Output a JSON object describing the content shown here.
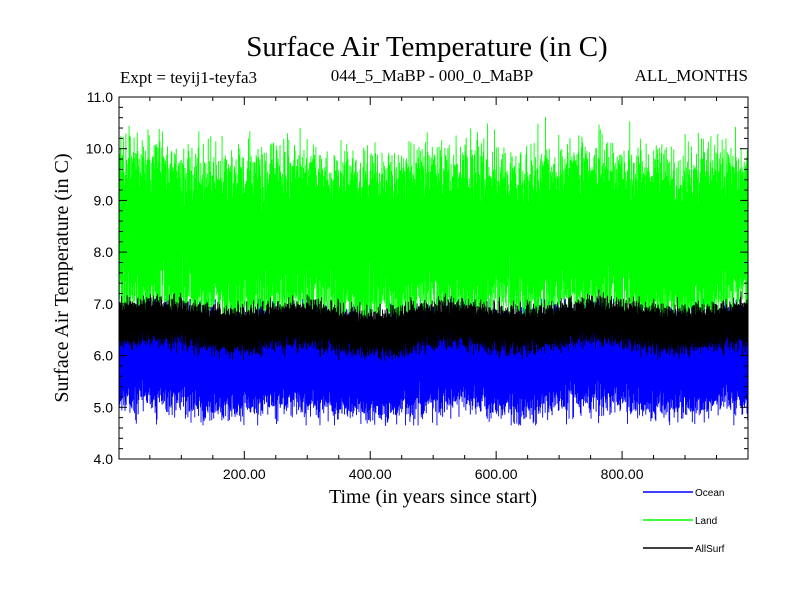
{
  "chart_data": {
    "type": "line",
    "title": "Surface Air Temperature (in C)",
    "subtitle_left": "Expt = teyij1-teyfa3",
    "subtitle_center": "044_5_MaBP - 000_0_MaBP",
    "subtitle_right": "ALL_MONTHS",
    "xlabel": "Time (in years since start)",
    "ylabel": "Surface Air Temperature (in C)",
    "xlim": [
      1,
      1000
    ],
    "ylim": [
      4.0,
      11.0
    ],
    "x_ticks": [
      200,
      400,
      600,
      800
    ],
    "x_tick_labels": [
      "200.00",
      "400.00",
      "600.00",
      "800.00"
    ],
    "y_ticks": [
      4,
      5,
      6,
      7,
      8,
      9,
      10,
      11
    ],
    "y_tick_labels": [
      "4.0",
      "5.0",
      "6.0",
      "7.0",
      "8.0",
      "9.0",
      "10.0",
      "11.0"
    ],
    "series": [
      {
        "name": "Ocean",
        "color": "#0000ff",
        "mean": 5.9,
        "min": 4.65,
        "max": 7.1,
        "annual_amplitude": 0.75
      },
      {
        "name": "Land",
        "color": "#00ff00",
        "mean": 8.3,
        "min": 6.55,
        "max": 10.72,
        "annual_amplitude": 1.0
      },
      {
        "name": "AllSurf",
        "color": "#000000",
        "mean": 6.55,
        "min": 5.9,
        "max": 7.7,
        "annual_amplitude": 0.3
      }
    ],
    "legend": {
      "position": "bottom-right",
      "entries": [
        "Ocean",
        "Land",
        "AllSurf"
      ]
    },
    "grid": false
  }
}
